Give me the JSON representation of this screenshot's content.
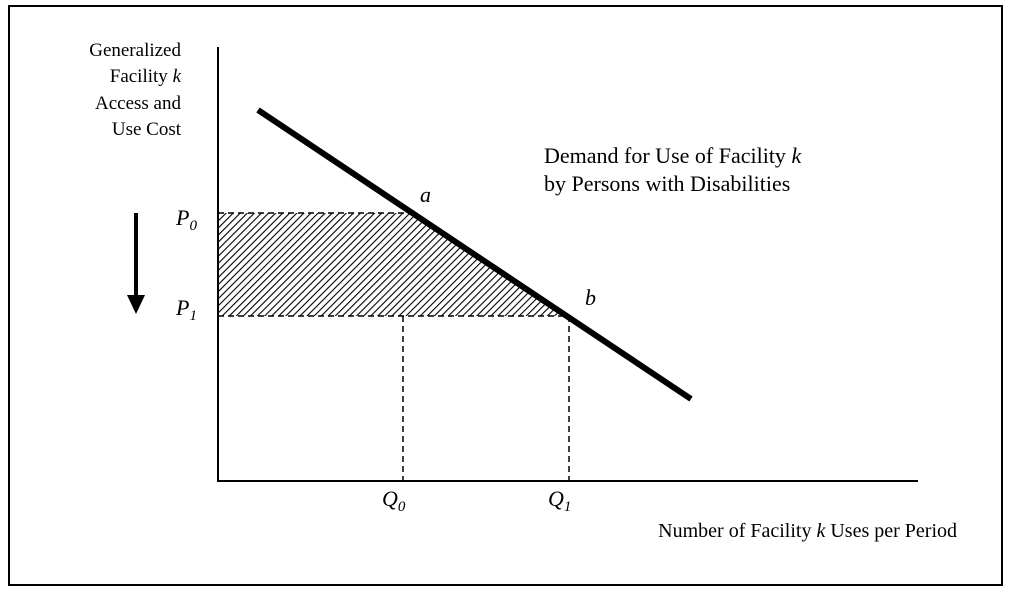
{
  "y_axis_label_lines": [
    "Generalized",
    "Facility",
    "Access and",
    "Use Cost"
  ],
  "y_axis_label_italic_k": "k",
  "x_axis_label": {
    "before": "Number of Facility ",
    "italic": "k",
    "after": " Uses per Period"
  },
  "demand_label": {
    "line1_before": "Demand for Use of Facility ",
    "line1_italic": "k",
    "line2": "by Persons with Disabilities"
  },
  "points": {
    "a": "a",
    "b": "b"
  },
  "price_labels": {
    "p0_main": "P",
    "p0_sub": "0",
    "p1_main": "P",
    "p1_sub": "1"
  },
  "quantity_labels": {
    "q0_main": "Q",
    "q0_sub": "0",
    "q1_main": "Q",
    "q1_sub": "1"
  },
  "colors": {
    "ink": "#000000",
    "background": "#ffffff"
  },
  "icons": {
    "price_change_arrow": "down-arrow-icon"
  }
}
